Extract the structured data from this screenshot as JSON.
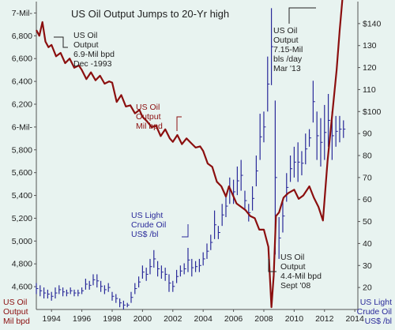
{
  "chart_data": {
    "type": "line",
    "title": "US Oil Output Jumps to 20-Yr high",
    "colors": {
      "oil_output": "#8b0f0f",
      "oil_price": "#2a2a9a",
      "background": "#e8f3f0",
      "text": "#222222"
    },
    "x_axis": {
      "range": [
        1993.0,
        2014.2
      ],
      "ticks": [
        1994,
        1996,
        1998,
        2000,
        2002,
        2004,
        2006,
        2008,
        2010,
        2012,
        2014
      ],
      "tick_labels": [
        "1994",
        "1996",
        "1998",
        "2000",
        "2002",
        "2004",
        "2006",
        "2008",
        "2010",
        "2012",
        "2014"
      ]
    },
    "left_axis": {
      "range": [
        4400,
        7100
      ],
      "ticks": [
        4600,
        4800,
        5000,
        5200,
        5400,
        5600,
        5800,
        6000,
        6200,
        6400,
        6600,
        6800,
        7000
      ],
      "tick_labels": [
        "4,600",
        "4,800",
        "5,000",
        "5,200",
        "5,400",
        "5,600",
        "5,800",
        "6-Mil-",
        "6,200",
        "6,400",
        "6,600",
        "6,800",
        "7-Mil-"
      ],
      "label_line1": "US Oil",
      "label_line2": "Output",
      "label_line3": "Mil bpd"
    },
    "right_axis": {
      "range": [
        10,
        150
      ],
      "ticks": [
        20,
        30,
        40,
        50,
        60,
        70,
        80,
        90,
        100,
        110,
        120,
        130,
        140
      ],
      "tick_labels": [
        "20",
        "30",
        "40",
        "50",
        "60",
        "70",
        "80",
        "90",
        "$100",
        "110",
        "120",
        "130",
        "$140"
      ],
      "label_line1": "US Light",
      "label_line2": "Crude Oil",
      "label_line3": "US$ /bl"
    },
    "series": [
      {
        "name": "US Oil Output",
        "axis": "left",
        "x": [
          1993.0,
          1993.2,
          1993.4,
          1993.6,
          1993.8,
          1994.0,
          1994.3,
          1994.6,
          1994.9,
          1995.2,
          1995.5,
          1995.8,
          1996.0,
          1996.3,
          1996.6,
          1996.9,
          1997.2,
          1997.5,
          1997.8,
          1998.0,
          1998.3,
          1998.6,
          1998.9,
          1999.2,
          1999.5,
          1999.8,
          2000.0,
          2000.3,
          2000.6,
          2000.9,
          2001.2,
          2001.5,
          2001.8,
          2002.0,
          2002.3,
          2002.6,
          2002.9,
          2003.2,
          2003.5,
          2003.8,
          2004.0,
          2004.3,
          2004.6,
          2004.9,
          2005.2,
          2005.5,
          2005.7,
          2005.9,
          2006.2,
          2006.5,
          2006.8,
          2007.1,
          2007.4,
          2007.7,
          2008.0,
          2008.3,
          2008.5,
          2008.65,
          2008.8,
          2009.0,
          2009.3,
          2009.6,
          2010.0,
          2010.3,
          2010.6,
          2011.0,
          2011.3,
          2011.6,
          2011.9,
          2012.2,
          2012.5,
          2012.8,
          2013.0,
          2013.2
        ],
        "values": [
          6850,
          6800,
          6920,
          6750,
          6700,
          6720,
          6620,
          6650,
          6560,
          6600,
          6520,
          6540,
          6500,
          6420,
          6480,
          6410,
          6450,
          6380,
          6400,
          6390,
          6220,
          6280,
          6180,
          6190,
          6120,
          6150,
          6090,
          6050,
          6000,
          6010,
          5920,
          5980,
          5900,
          5870,
          5930,
          5850,
          5900,
          5860,
          5820,
          5830,
          5790,
          5680,
          5650,
          5520,
          5480,
          5390,
          5480,
          5420,
          5330,
          5300,
          5270,
          5220,
          5200,
          5100,
          5100,
          4950,
          4420,
          4700,
          5220,
          5250,
          5380,
          5420,
          5450,
          5370,
          5400,
          5480,
          5380,
          5300,
          5180,
          5700,
          6100,
          6500,
          6850,
          7150
        ]
      },
      {
        "name": "US Light Crude Oil",
        "axis": "right",
        "style": "monthly high-low bars",
        "x": [
          1993.0,
          1993.25,
          1993.5,
          1993.75,
          1994.0,
          1994.25,
          1994.5,
          1994.75,
          1995.0,
          1995.25,
          1995.5,
          1995.75,
          1996.0,
          1996.25,
          1996.5,
          1996.75,
          1997.0,
          1997.25,
          1997.5,
          1997.75,
          1998.0,
          1998.25,
          1998.5,
          1998.75,
          1999.0,
          1999.25,
          1999.5,
          1999.75,
          2000.0,
          2000.25,
          2000.5,
          2000.75,
          2001.0,
          2001.25,
          2001.5,
          2001.75,
          2002.0,
          2002.25,
          2002.5,
          2002.75,
          2003.0,
          2003.25,
          2003.5,
          2003.75,
          2004.0,
          2004.25,
          2004.5,
          2004.75,
          2005.0,
          2005.25,
          2005.5,
          2005.75,
          2006.0,
          2006.25,
          2006.5,
          2006.75,
          2007.0,
          2007.25,
          2007.5,
          2007.75,
          2008.0,
          2008.25,
          2008.5,
          2008.75,
          2009.0,
          2009.25,
          2009.5,
          2009.75,
          2010.0,
          2010.25,
          2010.5,
          2010.75,
          2011.0,
          2011.25,
          2011.5,
          2011.75,
          2012.0,
          2012.25,
          2012.5,
          2012.75,
          2013.0,
          2013.25
        ],
        "high": [
          22,
          21,
          20,
          19,
          18,
          20,
          21,
          20,
          19,
          20,
          19,
          19,
          20,
          24,
          23,
          26,
          26,
          23,
          21,
          22,
          18,
          17,
          15,
          14,
          13,
          18,
          22,
          25,
          30,
          29,
          33,
          37,
          32,
          30,
          29,
          26,
          23,
          28,
          30,
          31,
          38,
          33,
          32,
          33,
          36,
          40,
          44,
          55,
          48,
          58,
          62,
          70,
          69,
          75,
          78,
          64,
          58,
          66,
          80,
          99,
          100,
          125,
          147,
          105,
          52,
          60,
          72,
          80,
          84,
          86,
          82,
          90,
          92,
          114,
          100,
          97,
          103,
          108,
          100,
          98,
          98,
          96
        ],
        "low": [
          17,
          16,
          15,
          15,
          14,
          15,
          17,
          16,
          16,
          17,
          16,
          16,
          17,
          19,
          19,
          21,
          20,
          18,
          17,
          18,
          14,
          13,
          11,
          10,
          11,
          13,
          17,
          20,
          24,
          23,
          26,
          29,
          25,
          24,
          23,
          18,
          18,
          22,
          25,
          26,
          27,
          25,
          27,
          27,
          30,
          33,
          37,
          42,
          42,
          48,
          52,
          58,
          58,
          62,
          64,
          55,
          50,
          55,
          66,
          78,
          86,
          100,
          112,
          35,
          33,
          45,
          59,
          68,
          70,
          68,
          71,
          76,
          84,
          95,
          78,
          75,
          78,
          84,
          78,
          84,
          86,
          88
        ]
      }
    ],
    "annotations": [
      {
        "key": "dec93",
        "lines": [
          "US Oil",
          "Output",
          "6.9-Mil bpd",
          "Dec -1993"
        ]
      },
      {
        "key": "mar13",
        "lines": [
          "US Oil",
          "Output",
          "7.15-Mil",
          "bls /day",
          "Mar '13"
        ]
      },
      {
        "key": "output_label",
        "lines": [
          "US Oil",
          "Output",
          "Mil bpd"
        ]
      },
      {
        "key": "crude_label",
        "lines": [
          "US Light",
          "Crude Oil",
          "US$ /bl"
        ]
      },
      {
        "key": "sep08",
        "lines": [
          "US Oil",
          "Output",
          "4.4-Mil bpd",
          "Sept '08"
        ]
      }
    ]
  }
}
